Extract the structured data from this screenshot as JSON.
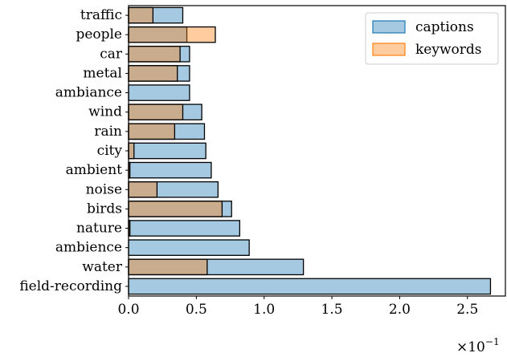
{
  "chart_data": {
    "type": "bar",
    "orientation": "horizontal",
    "categories": [
      "field-recording",
      "water",
      "ambience",
      "nature",
      "birds",
      "noise",
      "ambient",
      "city",
      "rain",
      "wind",
      "ambiance",
      "metal",
      "car",
      "people",
      "traffic"
    ],
    "series": [
      {
        "name": "captions",
        "color": "#1f77b4",
        "values": [
          2.67,
          1.29,
          0.89,
          0.82,
          0.76,
          0.66,
          0.61,
          0.57,
          0.56,
          0.54,
          0.45,
          0.45,
          0.45,
          0.43,
          0.4
        ]
      },
      {
        "name": "keywords",
        "color": "#ff7f0e",
        "values": [
          0.0,
          0.58,
          0.0,
          0.01,
          0.69,
          0.21,
          0.01,
          0.04,
          0.34,
          0.4,
          0.0,
          0.36,
          0.38,
          0.64,
          0.18
        ]
      }
    ],
    "xlim": [
      0,
      2.78
    ],
    "xticks": [
      "0.0",
      "0.5",
      "1.0",
      "1.5",
      "2.0",
      "2.5"
    ],
    "xtick_values": [
      0,
      0.5,
      1.0,
      1.5,
      2.0,
      2.5
    ],
    "x_multiplier": "×10",
    "x_multiplier_exp": "−1",
    "legend_position": "top-right",
    "grid": false
  }
}
